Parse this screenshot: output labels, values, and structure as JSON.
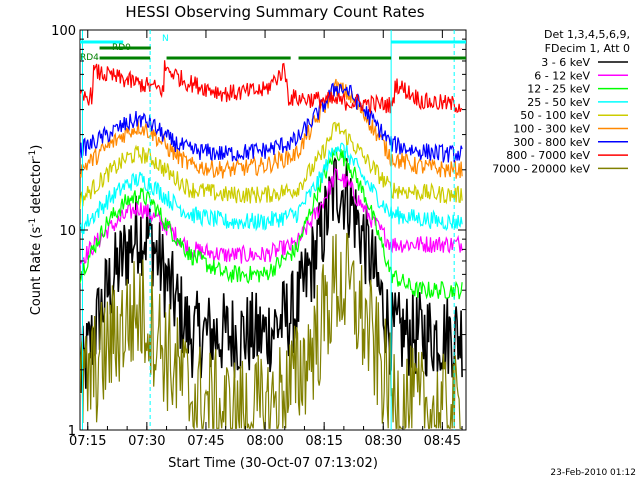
{
  "chart_data": {
    "type": "line",
    "title": "HESSI Observing Summary Count Rates",
    "xlabel": "Start Time (30-Oct-07 07:13:02)",
    "ylabel": "Count Rate (s⁻¹ detector⁻¹)",
    "ylabel_base": "Count Rate (s",
    "ylabel_mid": " detector",
    "ylabel_end": ")",
    "ylabel_sup": "-1",
    "yscale": "log",
    "ylim": [
      1,
      100
    ],
    "xlim": [
      "07:13:02",
      "08:51:00"
    ],
    "x_ticks": [
      "07:15",
      "07:30",
      "07:45",
      "08:00",
      "08:15",
      "08:30",
      "08:45"
    ],
    "y_ticks": [
      "1",
      "10",
      "100"
    ],
    "legend": {
      "header1": "Det 1,3,4,5,6,9,",
      "header2": "FDecim 1, Att 0",
      "placement": "right"
    },
    "series": [
      {
        "name": "3 - 6 keV",
        "color": "#000000",
        "x": [
          "07:13",
          "07:20",
          "07:25",
          "07:28",
          "07:31",
          "07:36",
          "07:41",
          "07:50",
          "08:00",
          "08:08",
          "08:14",
          "08:18",
          "08:21",
          "08:26",
          "08:32",
          "08:38",
          "08:46",
          "08:50"
        ],
        "values": [
          1.8,
          5,
          8,
          10,
          9,
          5,
          3,
          3,
          3,
          4,
          9,
          17,
          15,
          8,
          3,
          3,
          3,
          3
        ]
      },
      {
        "name": "6 - 12 keV",
        "color": "#ff00ff",
        "x": [
          "07:13",
          "07:20",
          "07:25",
          "07:28",
          "07:31",
          "07:36",
          "07:41",
          "07:50",
          "08:00",
          "08:08",
          "08:14",
          "08:18",
          "08:21",
          "08:26",
          "08:32",
          "08:38",
          "08:46",
          "08:50"
        ],
        "values": [
          7,
          10,
          12,
          13,
          12,
          10,
          8,
          7.5,
          7.5,
          8.5,
          13,
          19,
          17,
          12,
          8.5,
          8.5,
          8.5,
          8.5
        ]
      },
      {
        "name": "12 - 25 keV",
        "color": "#00ff00",
        "x": [
          "07:13",
          "07:20",
          "07:25",
          "07:28",
          "07:31",
          "07:36",
          "07:41",
          "07:50",
          "08:00",
          "08:08",
          "08:14",
          "08:18",
          "08:21",
          "08:26",
          "08:32",
          "08:38",
          "08:46",
          "08:50"
        ],
        "values": [
          6,
          11,
          14,
          15,
          14,
          10,
          7.5,
          6,
          6,
          8,
          17,
          25,
          22,
          14,
          6,
          5,
          5,
          5
        ]
      },
      {
        "name": "25 - 50 keV",
        "color": "#00ffff",
        "x": [
          "07:13",
          "07:20",
          "07:25",
          "07:28",
          "07:31",
          "07:36",
          "07:41",
          "07:50",
          "08:00",
          "08:08",
          "08:14",
          "08:18",
          "08:21",
          "08:26",
          "08:32",
          "08:38",
          "08:46",
          "08:50"
        ],
        "values": [
          10,
          14,
          17,
          18,
          17,
          14,
          12,
          11,
          11,
          12,
          18,
          27,
          24,
          17,
          12,
          11.5,
          11,
          11
        ]
      },
      {
        "name": "50 - 100 keV",
        "color": "#cccc00",
        "x": [
          "07:13",
          "07:20",
          "07:25",
          "07:28",
          "07:31",
          "07:36",
          "07:41",
          "07:50",
          "08:00",
          "08:08",
          "08:14",
          "08:18",
          "08:21",
          "08:26",
          "08:32",
          "08:38",
          "08:46",
          "08:50"
        ],
        "values": [
          14,
          19,
          23,
          24,
          23,
          19,
          16,
          15,
          15,
          16,
          23,
          33,
          29,
          22,
          16,
          15.5,
          15,
          15
        ]
      },
      {
        "name": "100 - 300 keV",
        "color": "#ff8800",
        "x": [
          "07:13",
          "07:20",
          "07:25",
          "07:28",
          "07:31",
          "07:36",
          "07:41",
          "07:50",
          "08:00",
          "08:08",
          "08:14",
          "08:18",
          "08:21",
          "08:26",
          "08:32",
          "08:38",
          "08:46",
          "08:50"
        ],
        "values": [
          20,
          26,
          31,
          33,
          31,
          25,
          21,
          20,
          21,
          24,
          38,
          52,
          48,
          36,
          23,
          21,
          20,
          20
        ]
      },
      {
        "name": "300 - 800 keV",
        "color": "#0000ff",
        "x": [
          "07:13",
          "07:20",
          "07:25",
          "07:28",
          "07:31",
          "07:36",
          "07:41",
          "07:50",
          "08:00",
          "08:08",
          "08:14",
          "08:18",
          "08:21",
          "08:26",
          "08:32",
          "08:38",
          "08:46",
          "08:50"
        ],
        "values": [
          25,
          30,
          34,
          36,
          34,
          28,
          25,
          24,
          25,
          28,
          40,
          52,
          50,
          38,
          27,
          25,
          24,
          24
        ]
      },
      {
        "name": "800 - 7000 keV",
        "color": "#ff0000",
        "x": [
          "07:13",
          "07:16",
          "07:16.5",
          "07:34.4",
          "07:34.5",
          "07:40",
          "07:50",
          "08:00",
          "08:02",
          "08:05",
          "08:06",
          "08:32.5",
          "08:33",
          "08:40",
          "08:50"
        ],
        "values": [
          45,
          47,
          62,
          50,
          65,
          55,
          48,
          50,
          55,
          64,
          46,
          42,
          54,
          44,
          42
        ]
      },
      {
        "name": "7000 - 20000 keV",
        "color": "#808000",
        "x": [
          "07:13",
          "07:18",
          "07:23",
          "07:28",
          "07:31",
          "07:36",
          "07:41",
          "07:50",
          "08:00",
          "08:08",
          "08:14",
          "08:18",
          "08:21",
          "08:26",
          "08:32",
          "08:38",
          "08:46",
          "08:50"
        ],
        "values": [
          1.5,
          2.2,
          3.2,
          4.0,
          3.5,
          2.2,
          1.5,
          1.2,
          1.2,
          1.8,
          3.2,
          5.5,
          5.0,
          3.2,
          1.5,
          1.3,
          1.2,
          1.2
        ]
      }
    ],
    "flags": [
      {
        "label": "N",
        "color": "#00ffff",
        "x_start": "07:13:02",
        "x_end": "07:24:00"
      },
      {
        "label": "RD0",
        "color": "#008000",
        "x_start": "07:18:00",
        "x_end": "07:31:00"
      },
      {
        "label": "RD4",
        "color": "#008000",
        "x_start": "07:13:02",
        "x_end": "08:51:00"
      }
    ],
    "saa_lines": [
      "07:13:40",
      "07:30:50",
      "08:32:00",
      "08:48:00"
    ],
    "grid": false
  },
  "footer": {
    "date_stamp": "23-Feb-2010 01:12"
  }
}
